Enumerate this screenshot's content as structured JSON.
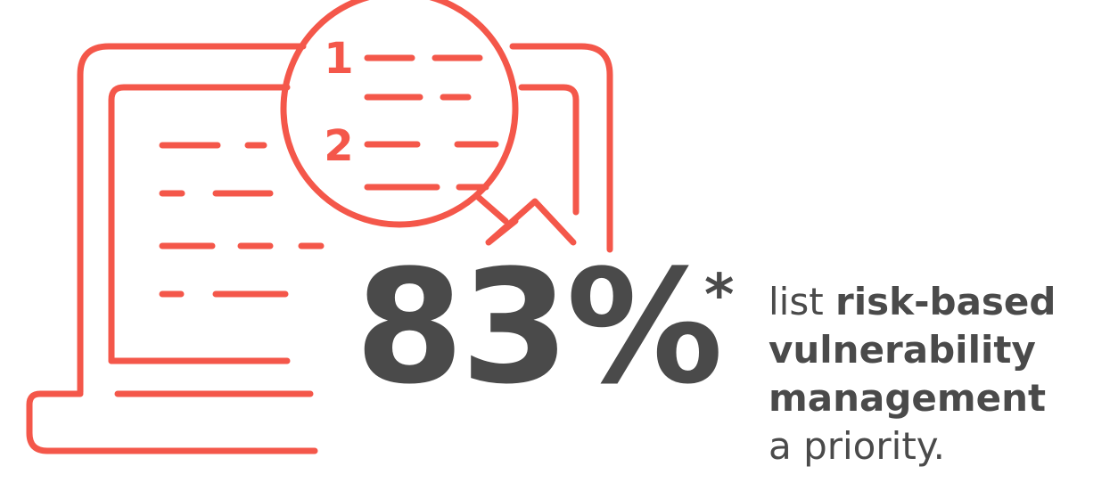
{
  "accent_color": "#f4574a",
  "text_color": "#4a4a4a",
  "illustration": {
    "icon": "laptop-magnifier-icon",
    "rank_1": "1",
    "rank_2": "2"
  },
  "stat": {
    "value": "83%",
    "footnote_marker": "*"
  },
  "caption": {
    "line1_plain": "list ",
    "line1_bold": "risk-based",
    "line2_bold": "vulnerability",
    "line3_bold": "management",
    "line4_plain": "a priority."
  }
}
